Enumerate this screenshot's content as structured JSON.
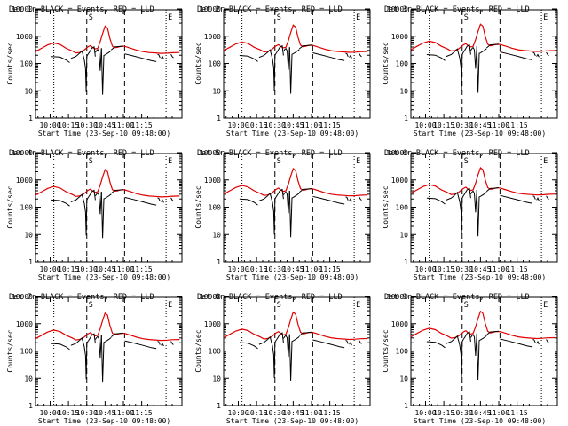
{
  "chart_data": {
    "type": "line",
    "ylabel": "Counts/sec",
    "xlabel": "Start Time (23-Sep-10 09:48:00)",
    "yscale": "log",
    "ylim": [
      1,
      10000
    ],
    "y_ticks": [
      "1",
      "10",
      "100",
      "1000",
      "10000"
    ],
    "x_ticks": [
      "10:00",
      "10:15",
      "10:30",
      "10:45",
      "11:00",
      "11:15"
    ],
    "markers": {
      "S": "S",
      "E": "E"
    },
    "dotted_lines_minutes": [
      15,
      107
    ],
    "dashed_lines_minutes": [
      42,
      73
    ],
    "colors": {
      "events": "#000000",
      "lld": "#e00000"
    },
    "panels": [
      {
        "title": "Det 1r BLACK = Events, RED = LLD"
      },
      {
        "title": "Det 2r BLACK = Events, RED = LLD"
      },
      {
        "title": "Det 3r BLACK = Events, RED = LLD"
      },
      {
        "title": "Det 4r BLACK = Events, RED = LLD"
      },
      {
        "title": "Det 5r BLACK = Events, RED = LLD"
      },
      {
        "title": "Det 6r BLACK = Events, RED = LLD"
      },
      {
        "title": "Det 7r BLACK = Events, RED = LLD"
      },
      {
        "title": "Det 8r BLACK = Events, RED = LLD"
      },
      {
        "title": "Det 9r BLACK = Events, RED = LLD"
      }
    ],
    "series": [
      {
        "name": "LLD",
        "x_minutes": [
          0,
          5,
          10,
          15,
          20,
          25,
          30,
          33,
          36,
          39,
          41,
          43,
          45,
          47,
          49,
          51,
          53,
          55,
          57,
          59,
          61,
          63,
          65,
          67,
          69,
          71,
          73,
          78,
          83,
          88,
          93,
          98,
          103,
          108,
          112,
          118
        ],
        "y": [
          300,
          400,
          530,
          620,
          550,
          400,
          320,
          270,
          280,
          320,
          380,
          450,
          500,
          420,
          380,
          400,
          700,
          1400,
          2600,
          2200,
          900,
          480,
          420,
          430,
          460,
          470,
          470,
          400,
          340,
          300,
          280,
          270,
          260,
          265,
          275,
          280
        ]
      },
      {
        "name": "Events",
        "segments": [
          {
            "x_minutes": [
              13,
              20,
              25,
              28
            ],
            "y": [
              200,
              190,
              150,
              120
            ]
          },
          {
            "x_minutes": [
              29,
              33,
              36
            ],
            "y": [
              170,
              200,
              260
            ]
          },
          {
            "x_minutes": [
              36,
              38,
              40,
              41,
              41.5,
              42,
              43
            ],
            "y": [
              260,
              320,
              150,
              70,
              10,
              200,
              240
            ]
          },
          {
            "x_minutes": [
              43,
              44,
              46,
              48,
              49
            ],
            "y": [
              240,
              280,
              400,
              450,
              200
            ]
          },
          {
            "x_minutes": [
              49,
              50,
              51,
              52,
              53,
              54
            ],
            "y": [
              280,
              330,
              360,
              300,
              60,
              400
            ]
          },
          {
            "x_minutes": [
              54,
              55,
              56,
              57
            ],
            "y": [
              400,
              8,
              220,
              230
            ]
          },
          {
            "x_minutes": [
              57,
              60,
              62
            ],
            "y": [
              230,
              280,
              330
            ]
          },
          {
            "x_minutes": [
              62,
              65,
              68,
              72
            ],
            "y": [
              350,
              450,
              460,
              480
            ]
          },
          {
            "x_minutes": [
              73,
              80,
              88,
              95,
              99
            ],
            "y": [
              250,
              210,
              170,
              140,
              130
            ]
          },
          {
            "x_minutes": [
              100,
              101,
              102
            ],
            "y": [
              240,
              230,
              180
            ]
          },
          {
            "x_minutes": [
              103,
              104,
              105
            ],
            "y": [
              170,
              200,
              160
            ]
          },
          {
            "x_minutes": [
              111,
              112,
              113
            ],
            "y": [
              240,
              200,
              180
            ]
          }
        ]
      }
    ]
  }
}
